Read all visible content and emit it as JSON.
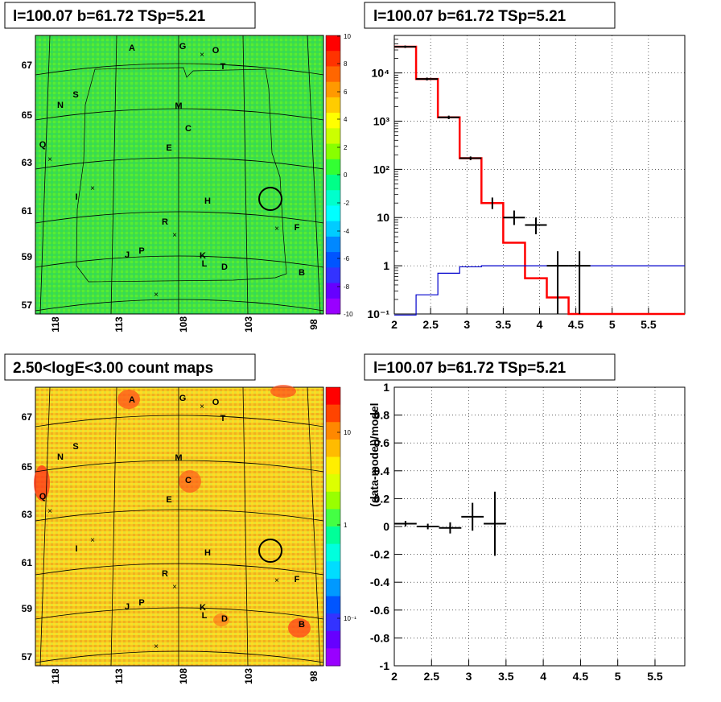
{
  "panels": {
    "tl": {
      "title": "l=100.07 b=61.72 TSp=5.21"
    },
    "tr": {
      "title": "l=100.07 b=61.72 TSp=5.21"
    },
    "bl": {
      "title": "2.50<logE<3.00 count maps"
    },
    "br": {
      "title": "l=100.07 b=61.72 TSp=5.21"
    }
  },
  "map_axes": {
    "x_ticks": [
      "118",
      "113",
      "108",
      "103",
      "98"
    ],
    "y_ticks": [
      "67",
      "65",
      "63",
      "61",
      "59",
      "57"
    ],
    "source_labels": [
      "A",
      "G",
      "O",
      "T",
      "S",
      "N",
      "M",
      "C",
      "Q",
      "E",
      "I",
      "H",
      "R",
      "F",
      "J",
      "P",
      "K",
      "L",
      "D",
      "B"
    ]
  },
  "colorbar_tl": {
    "ticks": [
      "10",
      "8",
      "6",
      "4",
      "2",
      "0",
      "-2",
      "-4",
      "-6",
      "-8",
      "-10"
    ],
    "colors": [
      "#ff0000",
      "#ff3300",
      "#ff6600",
      "#ff9900",
      "#ffcc00",
      "#ffff00",
      "#ccff00",
      "#88ff00",
      "#33ff33",
      "#00ff88",
      "#00ffcc",
      "#00ffff",
      "#00ccff",
      "#0088ff",
      "#0055ff",
      "#3333ff",
      "#6600ff",
      "#9900ff"
    ]
  },
  "colorbar_bl": {
    "ticks": [
      "10",
      "1",
      "10⁻¹"
    ],
    "colors": [
      "#ff0000",
      "#ff4400",
      "#ff8800",
      "#ffbb00",
      "#ffee00",
      "#ddff00",
      "#99ff00",
      "#44ff44",
      "#00ff99",
      "#00ffdd",
      "#00ddff",
      "#0099ff",
      "#0055ff",
      "#3333ff",
      "#6600ff",
      "#9900ff"
    ]
  },
  "chart_data": [
    {
      "type": "line",
      "panel": "spectrum",
      "title": "l=100.07 b=61.72 TSp=5.21",
      "xlabel": "",
      "ylabel": "",
      "xlim": [
        2,
        6
      ],
      "ylim": [
        0.1,
        60000
      ],
      "ylog": true,
      "grid": true,
      "x_ticks": [
        "2",
        "2.5",
        "3",
        "3.5",
        "4",
        "4.5",
        "5",
        "5.5"
      ],
      "y_ticks": [
        "10⁻¹",
        "1",
        "10",
        "10²",
        "10³",
        "10⁴"
      ],
      "series": [
        {
          "color": "#ff0000",
          "style": "step",
          "edges": [
            2,
            2.3,
            2.6,
            2.9,
            3.2,
            3.5,
            3.8,
            4.1,
            4.4,
            6.0
          ],
          "values": [
            35000,
            7500,
            1200,
            170,
            20,
            3,
            0.55,
            0.22,
            0.1
          ]
        },
        {
          "color": "#0000cc",
          "style": "step",
          "edges": [
            2,
            2.3,
            2.6,
            2.9,
            3.2,
            6.0
          ],
          "values": [
            0.05,
            0.25,
            0.7,
            0.95,
            1.0
          ]
        },
        {
          "color": "#000000",
          "style": "errorbars",
          "points": [
            {
              "x": 2.15,
              "y": 35000,
              "xerr": 0.15,
              "ylo": 33000,
              "yhi": 37000
            },
            {
              "x": 2.45,
              "y": 7500,
              "xerr": 0.15,
              "ylo": 7000,
              "yhi": 8000
            },
            {
              "x": 2.75,
              "y": 1200,
              "xerr": 0.15,
              "ylo": 1100,
              "yhi": 1300
            },
            {
              "x": 3.05,
              "y": 170,
              "xerr": 0.15,
              "ylo": 155,
              "yhi": 185
            },
            {
              "x": 3.35,
              "y": 20,
              "xerr": 0.0,
              "ylo": 15,
              "yhi": 26
            },
            {
              "x": 3.65,
              "y": 10,
              "xerr": 0.15,
              "ylo": 7,
              "yhi": 14
            },
            {
              "x": 3.95,
              "y": 7,
              "xerr": 0.15,
              "ylo": 4.5,
              "yhi": 10
            },
            {
              "x": 4.25,
              "y": 1,
              "xerr": 0.15,
              "ylo": 0.1,
              "yhi": 2
            },
            {
              "x": 4.55,
              "y": 1,
              "xerr": 0.15,
              "ylo": 0.1,
              "yhi": 2
            }
          ]
        }
      ]
    },
    {
      "type": "scatter",
      "panel": "residual",
      "title": "l=100.07 b=61.72 TSp=5.21",
      "xlabel": "",
      "ylabel": "(data-model)/model",
      "xlim": [
        2,
        5.9
      ],
      "ylim": [
        -1,
        1
      ],
      "grid": true,
      "x_ticks": [
        "2",
        "2.5",
        "3",
        "3.5",
        "4",
        "4.5",
        "5",
        "5.5"
      ],
      "y_ticks": [
        "1",
        "0.8",
        "0.6",
        "0.4",
        "0.2",
        "0",
        "-0.2",
        "-0.4",
        "-0.6",
        "-0.8",
        "-1"
      ],
      "points": [
        {
          "x": 2.15,
          "y": 0.02,
          "xerr": 0.15,
          "yerr": 0.02
        },
        {
          "x": 2.45,
          "y": 0.0,
          "xerr": 0.15,
          "yerr": 0.02
        },
        {
          "x": 2.75,
          "y": -0.01,
          "xerr": 0.15,
          "yerr": 0.04
        },
        {
          "x": 3.05,
          "y": 0.07,
          "xerr": 0.15,
          "yerr": 0.1
        },
        {
          "x": 3.35,
          "y": 0.02,
          "xerr": 0.15,
          "yerr": 0.23
        }
      ]
    }
  ]
}
